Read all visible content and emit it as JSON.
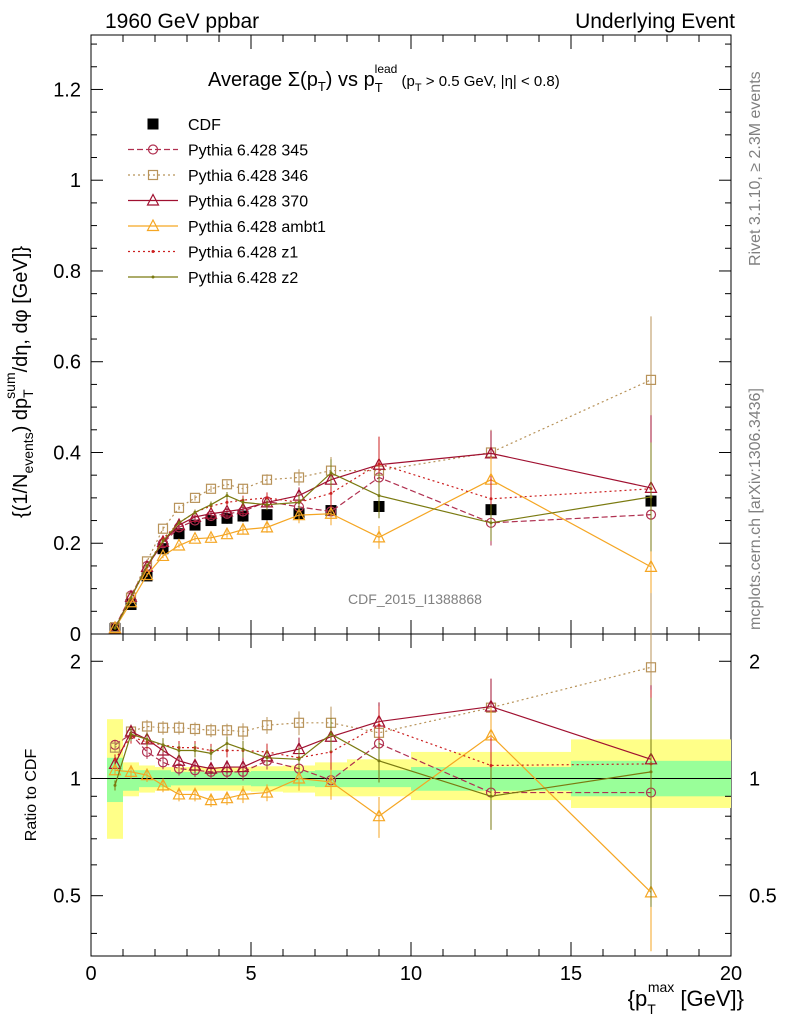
{
  "header": {
    "left": "1960 GeV ppbar",
    "right": "Underlying Event"
  },
  "side_labels": {
    "rivet": "Rivet 3.1.10, ≥ 2.3M events",
    "mcplots": "mcplots.cern.ch [arXiv:1306.3436]"
  },
  "watermark": "CDF_2015_I1388868",
  "colors": {
    "band_inner": "#99ff99",
    "band_outer": "#ffff88"
  },
  "chart_data": [
    {
      "type": "scatter",
      "title_parts": {
        "a": "Average ",
        "b": "Σ(p",
        "c": "T",
        "d": ") vs p",
        "e": "T",
        "f": "lead",
        "g": " (p",
        "h": "T",
        "i": " > 0.5 GeV, |η| < 0.8)"
      },
      "ylabel_parts": {
        "a": "{(1/N",
        "b": "events",
        "c": ") dp",
        "d": "T",
        "e": "sum",
        "f": "/dη, dφ [GeV]}"
      },
      "xlim": [
        0,
        20
      ],
      "ylim": [
        0,
        1.32
      ],
      "y_ticks": [
        "0",
        "0.2",
        "0.4",
        "0.6",
        "0.8",
        "1",
        "1.2"
      ],
      "y_tick_values": [
        0,
        0.2,
        0.4,
        0.6,
        0.8,
        1.0,
        1.2
      ],
      "x": [
        0.75,
        1.25,
        1.75,
        2.25,
        2.75,
        3.25,
        3.75,
        4.25,
        4.75,
        5.5,
        6.5,
        7.5,
        9.0,
        12.5,
        17.5
      ],
      "series": [
        {
          "name": "CDF",
          "color": "#000000",
          "marker": "square-filled",
          "dash": "none",
          "values": [
            0.012,
            0.065,
            0.128,
            0.188,
            0.221,
            0.24,
            0.25,
            0.255,
            0.26,
            0.263,
            0.265,
            0.272,
            0.281,
            0.274,
            0.293
          ],
          "err": [
            0.002,
            0.005,
            0.008,
            0.01,
            0.01,
            0.011,
            0.012,
            0.012,
            0.013,
            0.013,
            0.014,
            0.016,
            0.02,
            0.03,
            0.05
          ]
        },
        {
          "name": "Pythia 6.428 345",
          "color": "#b03050",
          "marker": "circle-open",
          "dash": "6,3",
          "values": [
            0.015,
            0.085,
            0.15,
            0.2,
            0.235,
            0.25,
            0.26,
            0.265,
            0.27,
            0.292,
            0.28,
            0.27,
            0.345,
            0.245,
            0.263
          ],
          "err": [
            0.001,
            0.003,
            0.004,
            0.005,
            0.005,
            0.006,
            0.007,
            0.008,
            0.01,
            0.015,
            0.02,
            0.03,
            0.06,
            0.05,
            0.12
          ]
        },
        {
          "name": "Pythia 6.428 346",
          "color": "#b8935a",
          "marker": "square-open",
          "dash": "2,3",
          "values": [
            0.015,
            0.08,
            0.16,
            0.232,
            0.278,
            0.3,
            0.32,
            0.33,
            0.32,
            0.34,
            0.345,
            0.36,
            0.36,
            0.4,
            0.56
          ],
          "err": [
            0.001,
            0.003,
            0.004,
            0.005,
            0.005,
            0.006,
            0.007,
            0.008,
            0.01,
            0.012,
            0.018,
            0.03,
            0.05,
            0.05,
            0.14
          ]
        },
        {
          "name": "Pythia 6.428 370",
          "color": "#a01030",
          "marker": "triangle-open",
          "dash": "none",
          "values": [
            0.013,
            0.082,
            0.148,
            0.203,
            0.24,
            0.258,
            0.265,
            0.27,
            0.275,
            0.29,
            0.305,
            0.34,
            0.373,
            0.398,
            0.322
          ],
          "err": [
            0.001,
            0.003,
            0.004,
            0.005,
            0.005,
            0.006,
            0.007,
            0.008,
            0.01,
            0.012,
            0.018,
            0.03,
            0.04,
            0.05,
            0.16
          ]
        },
        {
          "name": "Pythia 6.428 ambt1",
          "color": "#f5a623",
          "marker": "triangle-open",
          "dash": "none",
          "values": [
            0.013,
            0.07,
            0.13,
            0.172,
            0.195,
            0.21,
            0.212,
            0.22,
            0.23,
            0.235,
            0.262,
            0.265,
            0.213,
            0.34,
            0.148
          ],
          "err": [
            0.001,
            0.003,
            0.004,
            0.005,
            0.005,
            0.006,
            0.007,
            0.008,
            0.01,
            0.012,
            0.018,
            0.025,
            0.025,
            0.05,
            0.1
          ]
        },
        {
          "name": "Pythia 6.428 z1",
          "color": "#cc2020",
          "marker": "dot",
          "dash": "2,3",
          "values": [
            0.013,
            0.08,
            0.148,
            0.21,
            0.245,
            0.268,
            0.282,
            0.29,
            0.295,
            0.3,
            0.29,
            0.31,
            0.375,
            0.298,
            0.32
          ],
          "err": [
            0.001,
            0.003,
            0.004,
            0.005,
            0.005,
            0.006,
            0.007,
            0.008,
            0.01,
            0.012,
            0.018,
            0.03,
            0.06,
            0.05,
            0.1
          ]
        },
        {
          "name": "Pythia 6.428 z2",
          "color": "#7a7a10",
          "marker": "dot",
          "dash": "none",
          "values": [
            0.013,
            0.08,
            0.15,
            0.205,
            0.245,
            0.268,
            0.285,
            0.305,
            0.29,
            0.285,
            0.29,
            0.355,
            0.305,
            0.245,
            0.302
          ],
          "err": [
            0.001,
            0.003,
            0.004,
            0.005,
            0.005,
            0.006,
            0.007,
            0.008,
            0.01,
            0.012,
            0.018,
            0.03,
            0.05,
            0.04,
            0.12
          ]
        }
      ]
    },
    {
      "type": "scatter",
      "ylabel": "Ratio to CDF",
      "xlabel_parts": {
        "a": "{p",
        "b": "T",
        "c": "max",
        "d": " [GeV]}"
      },
      "xlim": [
        0,
        20
      ],
      "ylim": [
        0.35,
        2.35
      ],
      "x_ticks": [
        "0",
        "5",
        "10",
        "15",
        "20"
      ],
      "x_tick_values": [
        0,
        5,
        10,
        15,
        20
      ],
      "y_ticks": [
        "0.5",
        "1",
        "2"
      ],
      "y_tick_values": [
        0.5,
        1,
        2
      ],
      "reference": 1.0,
      "band_bins": [
        {
          "x0": 0.5,
          "x1": 1.0,
          "inner": [
            0.87,
            1.13
          ],
          "outer": [
            0.7,
            1.42
          ]
        },
        {
          "x0": 1.0,
          "x1": 1.5,
          "inner": [
            0.93,
            1.05
          ],
          "outer": [
            0.9,
            1.1
          ]
        },
        {
          "x0": 1.5,
          "x1": 2.0,
          "inner": [
            0.95,
            1.05
          ],
          "outer": [
            0.92,
            1.08
          ]
        },
        {
          "x0": 2.0,
          "x1": 2.5,
          "inner": [
            0.95,
            1.05
          ],
          "outer": [
            0.93,
            1.07
          ]
        },
        {
          "x0": 2.5,
          "x1": 3.0,
          "inner": [
            0.96,
            1.04
          ],
          "outer": [
            0.93,
            1.07
          ]
        },
        {
          "x0": 3.0,
          "x1": 3.5,
          "inner": [
            0.96,
            1.04
          ],
          "outer": [
            0.93,
            1.07
          ]
        },
        {
          "x0": 3.5,
          "x1": 4.0,
          "inner": [
            0.96,
            1.04
          ],
          "outer": [
            0.93,
            1.07
          ]
        },
        {
          "x0": 4.0,
          "x1": 4.5,
          "inner": [
            0.96,
            1.04
          ],
          "outer": [
            0.93,
            1.07
          ]
        },
        {
          "x0": 4.5,
          "x1": 5.0,
          "inner": [
            0.96,
            1.04
          ],
          "outer": [
            0.93,
            1.07
          ]
        },
        {
          "x0": 5.0,
          "x1": 6.0,
          "inner": [
            0.955,
            1.045
          ],
          "outer": [
            0.925,
            1.075
          ]
        },
        {
          "x0": 6.0,
          "x1": 7.0,
          "inner": [
            0.955,
            1.045
          ],
          "outer": [
            0.92,
            1.08
          ]
        },
        {
          "x0": 7.0,
          "x1": 8.0,
          "inner": [
            0.95,
            1.05
          ],
          "outer": [
            0.9,
            1.1
          ]
        },
        {
          "x0": 8.0,
          "x1": 10.0,
          "inner": [
            0.95,
            1.05
          ],
          "outer": [
            0.9,
            1.12
          ]
        },
        {
          "x0": 10.0,
          "x1": 15.0,
          "inner": [
            0.93,
            1.07
          ],
          "outer": [
            0.88,
            1.17
          ]
        },
        {
          "x0": 15.0,
          "x1": 20.0,
          "inner": [
            0.9,
            1.11
          ],
          "outer": [
            0.84,
            1.26
          ]
        }
      ],
      "series_ratios": [
        {
          "name": "Pythia 6.428 345",
          "values": [
            1.22,
            1.3,
            1.17,
            1.1,
            1.06,
            1.05,
            1.04,
            1.04,
            1.04,
            1.11,
            1.06,
            0.99,
            1.23,
            0.92,
            0.92
          ]
        },
        {
          "name": "Pythia 6.428 346",
          "values": [
            1.2,
            1.32,
            1.36,
            1.35,
            1.35,
            1.34,
            1.33,
            1.33,
            1.32,
            1.37,
            1.39,
            1.39,
            1.31,
            1.52,
            1.93
          ]
        },
        {
          "name": "Pythia 6.428 370",
          "values": [
            1.09,
            1.32,
            1.26,
            1.18,
            1.11,
            1.08,
            1.06,
            1.07,
            1.07,
            1.14,
            1.19,
            1.28,
            1.4,
            1.53,
            1.12
          ]
        },
        {
          "name": "Pythia 6.428 ambt1",
          "values": [
            1.05,
            1.04,
            1.02,
            0.96,
            0.91,
            0.91,
            0.88,
            0.89,
            0.91,
            0.92,
            1.0,
            0.98,
            0.8,
            1.29,
            0.51
          ]
        },
        {
          "name": "Pythia 6.428 z1",
          "values": [
            1.12,
            1.28,
            1.24,
            1.22,
            1.2,
            1.2,
            1.18,
            1.18,
            1.18,
            1.17,
            1.13,
            1.17,
            1.37,
            1.08,
            1.09
          ]
        },
        {
          "name": "Pythia 6.428 z2",
          "values": [
            0.96,
            1.3,
            1.26,
            1.22,
            1.18,
            1.18,
            1.16,
            1.23,
            1.19,
            1.13,
            1.12,
            1.3,
            1.11,
            0.9,
            1.04
          ]
        }
      ],
      "ratio_err": [
        0.03,
        0.04,
        0.04,
        0.04,
        0.04,
        0.04,
        0.04,
        0.04,
        0.05,
        0.05,
        0.07,
        0.1,
        0.12,
        0.18,
        0.55
      ]
    }
  ]
}
